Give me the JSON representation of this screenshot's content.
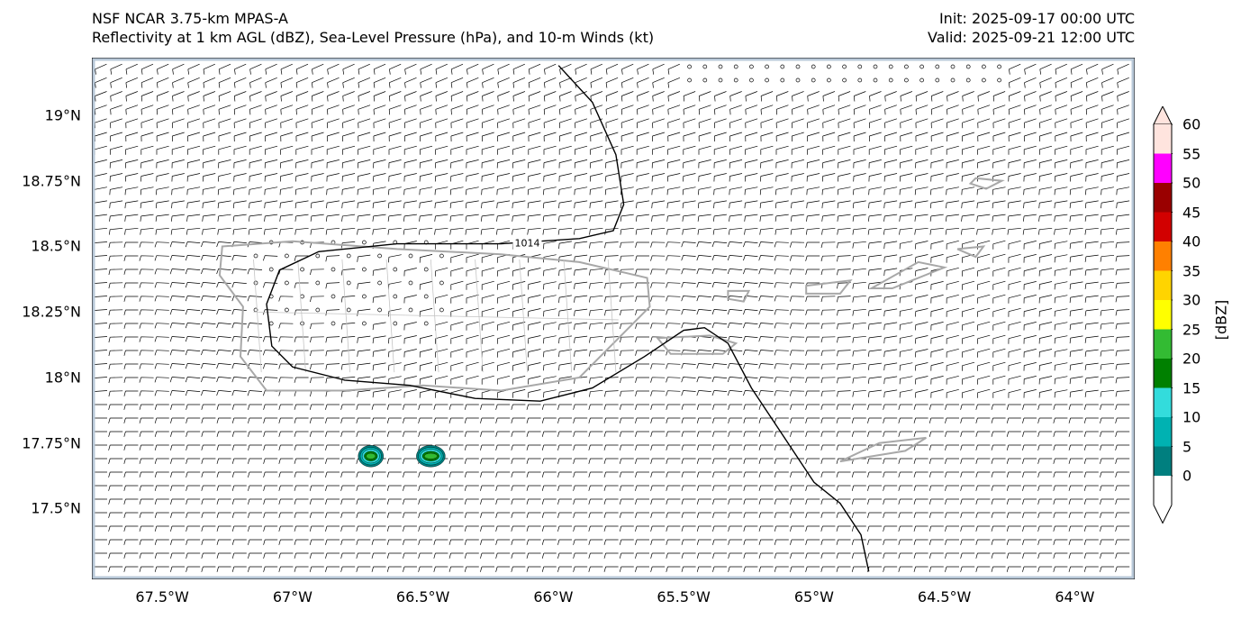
{
  "title": {
    "left_line1": "NSF NCAR 3.75-km MPAS-A",
    "left_line2": "Reflectivity at 1 km AGL (dBZ), Sea-Level Pressure (hPa), and 10-m Winds (kt)",
    "right_line1": "Init: 2025-09-17 00:00 UTC",
    "right_line2": "Valid: 2025-09-21 12:00 UTC"
  },
  "axes": {
    "lon_range": [
      -67.77,
      -63.77
    ],
    "lat_range": [
      17.23,
      19.22
    ],
    "x_ticks": [
      {
        "lon": -67.5,
        "label": "67.5°W"
      },
      {
        "lon": -67.0,
        "label": "67°W"
      },
      {
        "lon": -66.5,
        "label": "66.5°W"
      },
      {
        "lon": -66.0,
        "label": "66°W"
      },
      {
        "lon": -65.5,
        "label": "65.5°W"
      },
      {
        "lon": -65.0,
        "label": "65°W"
      },
      {
        "lon": -64.5,
        "label": "64.5°W"
      },
      {
        "lon": -64.0,
        "label": "64°W"
      }
    ],
    "y_ticks": [
      {
        "lat": 19.0,
        "label": "19°N"
      },
      {
        "lat": 18.75,
        "label": "18.75°N"
      },
      {
        "lat": 18.5,
        "label": "18.5°N"
      },
      {
        "lat": 18.25,
        "label": "18.25°N"
      },
      {
        "lat": 18.0,
        "label": "18°N"
      },
      {
        "lat": 17.75,
        "label": "17.75°N"
      },
      {
        "lat": 17.5,
        "label": "17.5°N"
      }
    ]
  },
  "isobar": {
    "label": "1014",
    "value_hpa": 1014,
    "points": [
      [
        -65.98,
        19.19
      ],
      [
        -65.85,
        19.05
      ],
      [
        -65.76,
        18.85
      ],
      [
        -65.73,
        18.66
      ],
      [
        -65.77,
        18.56
      ],
      [
        -65.9,
        18.53
      ],
      [
        -66.2,
        18.51
      ],
      [
        -66.6,
        18.51
      ],
      [
        -66.9,
        18.48
      ],
      [
        -67.05,
        18.41
      ],
      [
        -67.1,
        18.28
      ],
      [
        -67.08,
        18.12
      ],
      [
        -67.0,
        18.04
      ],
      [
        -66.8,
        17.99
      ],
      [
        -66.55,
        17.97
      ],
      [
        -66.3,
        17.92
      ],
      [
        -66.05,
        17.91
      ],
      [
        -65.85,
        17.96
      ],
      [
        -65.65,
        18.08
      ],
      [
        -65.5,
        18.18
      ],
      [
        -65.42,
        18.19
      ],
      [
        -65.33,
        18.13
      ],
      [
        -65.24,
        17.96
      ],
      [
        -65.12,
        17.78
      ],
      [
        -65.0,
        17.6
      ],
      [
        -64.9,
        17.52
      ],
      [
        -64.82,
        17.4
      ],
      [
        -64.79,
        17.26
      ]
    ]
  },
  "reflectivity_cells": [
    {
      "lon": -66.7,
      "lat": 17.7,
      "peak_dbz": 22
    },
    {
      "lon": -66.47,
      "lat": 17.7,
      "peak_dbz": 27
    }
  ],
  "colorbar": {
    "title": "[dBZ]",
    "levels": [
      0,
      5,
      10,
      15,
      20,
      25,
      30,
      35,
      40,
      45,
      50,
      55,
      60
    ],
    "labels": [
      "0",
      "5",
      "10",
      "15",
      "20",
      "25",
      "30",
      "35",
      "40",
      "45",
      "50",
      "55",
      "60"
    ],
    "colors": [
      "#007f7f",
      "#00b2b2",
      "#33dcdc",
      "#008000",
      "#33bb33",
      "#ffff00",
      "#ffd400",
      "#ff8000",
      "#d20000",
      "#9a0000",
      "#ff00ff",
      "#ffe4de"
    ],
    "under_color": "#ffffff",
    "over_color": "#ffe4de"
  },
  "map_colors": {
    "coast": "#a8a8a8",
    "border": "#c4c4c4",
    "isobar": "#000000",
    "barb": "#000000"
  },
  "wind_field": {
    "speed_range_kt": [
      0,
      12
    ],
    "calm_note": "small circles denote calm winds"
  }
}
